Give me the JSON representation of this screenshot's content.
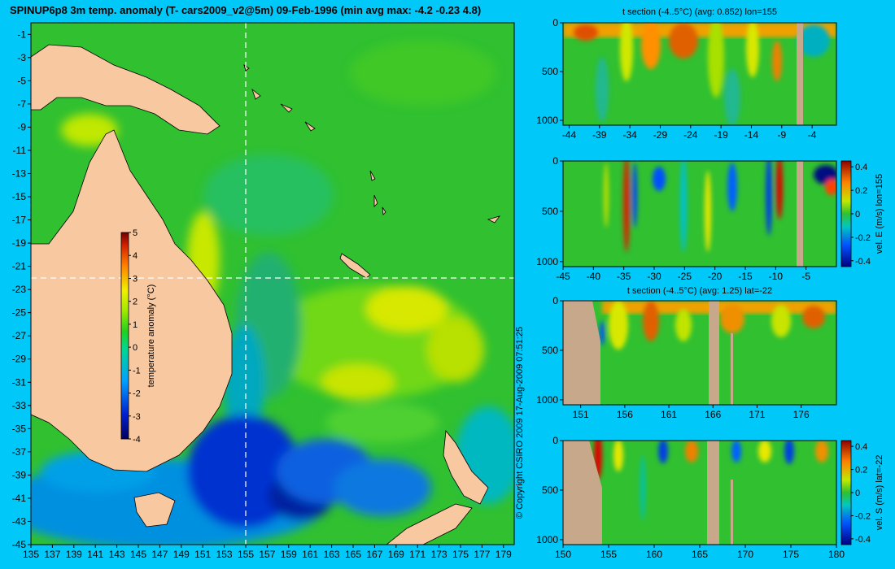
{
  "title": "SPINUP6p8 3m temp. anomaly (T- cars2009_v2@5m) 09-Feb-1996 (min avg max: -4.2 -0.23 4.8)",
  "copyright": "© Copyright CSIRO 2009   17-Aug-2009 07:51:25",
  "colors": {
    "background": "#00c8f8",
    "land": "#f8c8a0",
    "section_land": "#c8a88a",
    "ocean": "#30c030",
    "crosshair": "#ffffff"
  },
  "chart_data": [
    {
      "type": "heatmap",
      "id": "map",
      "title": "SPINUP6p8 3m temp. anomaly (T- cars2009_v2@5m) 09-Feb-1996 (min avg max: -4.2 -0.23 4.8)",
      "x_ticks": [
        "135",
        "137",
        "139",
        "141",
        "143",
        "145",
        "147",
        "149",
        "151",
        "153",
        "155",
        "157",
        "159",
        "161",
        "163",
        "165",
        "167",
        "169",
        "171",
        "173",
        "175",
        "177",
        "179"
      ],
      "y_ticks": [
        "-1",
        "-3",
        "-5",
        "-7",
        "-9",
        "-11",
        "-13",
        "-15",
        "-17",
        "-19",
        "-21",
        "-23",
        "-25",
        "-27",
        "-29",
        "-31",
        "-33",
        "-35",
        "-37",
        "-39",
        "-41",
        "-43",
        "-45"
      ],
      "xlim": [
        135,
        180
      ],
      "ylim": [
        -45,
        0
      ],
      "crosshair": {
        "lon": 155,
        "lat": -22
      },
      "colorbar": {
        "label": "temperature anomaly (°C)",
        "ticks": [
          "5",
          "4",
          "3",
          "2",
          "1",
          "0",
          "-1",
          "-2",
          "-3",
          "-4"
        ],
        "range": [
          -4,
          5
        ]
      }
    },
    {
      "type": "heatmap",
      "id": "tsec-lon",
      "title": "t section (-4..5°C) (avg: 0.852) lon=155",
      "x_ticks": [
        "-44",
        "-39",
        "-34",
        "-29",
        "-24",
        "-19",
        "-14",
        "-9",
        "-4"
      ],
      "y_ticks": [
        "0",
        "500",
        "1000"
      ],
      "xlim": [
        -45,
        0
      ],
      "ylim": [
        1050,
        0
      ]
    },
    {
      "type": "heatmap",
      "id": "vsec-lon",
      "title": "",
      "x_ticks": [
        "-45",
        "-40",
        "-35",
        "-30",
        "-25",
        "-20",
        "-15",
        "-10",
        "-5"
      ],
      "y_ticks": [
        "0",
        "500",
        "1000"
      ],
      "xlim": [
        -45,
        0
      ],
      "ylim": [
        1050,
        0
      ],
      "colorbar": {
        "label": "vel. E (m/s) lon=155",
        "ticks": [
          "0.4",
          "0.2",
          "0",
          "-0.2",
          "-0.4"
        ],
        "range": [
          -0.45,
          0.45
        ]
      }
    },
    {
      "type": "heatmap",
      "id": "tsec-lat",
      "title": "t section (-4..5°C) (avg: 1.25) lat=-22",
      "x_ticks": [
        "151",
        "156",
        "161",
        "166",
        "171",
        "176"
      ],
      "y_ticks": [
        "0",
        "500",
        "1000"
      ],
      "xlim": [
        150,
        180
      ],
      "ylim": [
        1050,
        0
      ]
    },
    {
      "type": "heatmap",
      "id": "vsec-lat",
      "title": "",
      "x_ticks": [
        "150",
        "155",
        "160",
        "165",
        "170",
        "175",
        "180"
      ],
      "y_ticks": [
        "0",
        "500",
        "1000"
      ],
      "xlim": [
        150,
        180
      ],
      "ylim": [
        1050,
        0
      ],
      "colorbar": {
        "label": "vel. S (m/s) lat=-22",
        "ticks": [
          "0.4",
          "0.2",
          "0",
          "-0.2",
          "-0.4"
        ],
        "range": [
          -0.45,
          0.45
        ]
      }
    }
  ]
}
